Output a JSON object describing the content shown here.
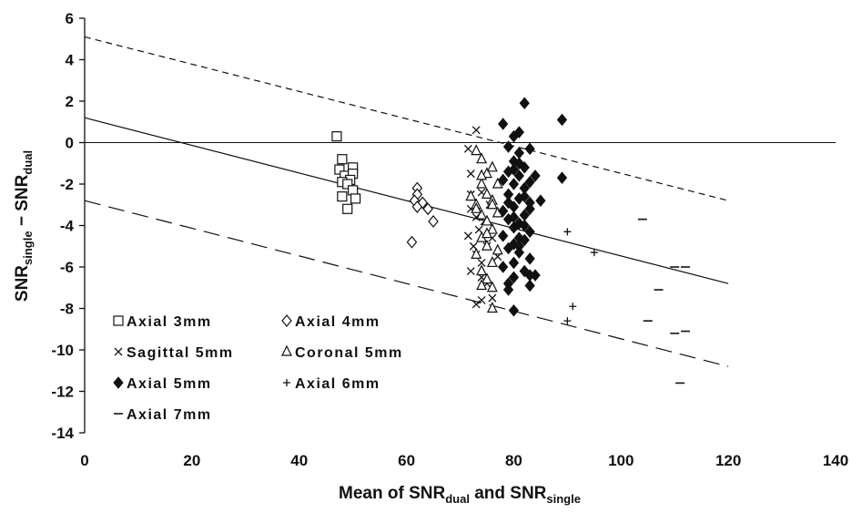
{
  "chart_data": {
    "type": "scatter",
    "xlabel": {
      "main": "Mean of SNR",
      "sub1": "dual",
      "mid": " and SNR",
      "sub2": "single"
    },
    "ylabel": {
      "main": "SNR",
      "sub1": "single",
      "mid": " − SNR",
      "sub2": "dual"
    },
    "xlim": [
      0,
      140
    ],
    "ylim": [
      -14,
      6
    ],
    "xticks": [
      0,
      20,
      40,
      60,
      80,
      100,
      120,
      140
    ],
    "yticks": [
      -14,
      -12,
      -10,
      -8,
      -6,
      -4,
      -2,
      0,
      2,
      4,
      6
    ],
    "grid": false,
    "legend_position": "bottom-left",
    "series": [
      {
        "name": "Axial 3mm",
        "marker": "open-square",
        "color": "#111111",
        "points": [
          [
            47,
            0.3
          ],
          [
            48,
            -0.8
          ],
          [
            47.5,
            -1.3
          ],
          [
            48.5,
            -1.6
          ],
          [
            50,
            -1.2
          ],
          [
            50,
            -1.5
          ],
          [
            49.5,
            -1.8
          ],
          [
            48,
            -1.9
          ],
          [
            49,
            -2.0
          ],
          [
            50,
            -2.3
          ],
          [
            48,
            -2.6
          ],
          [
            50.5,
            -2.7
          ],
          [
            49,
            -3.2
          ]
        ]
      },
      {
        "name": "Axial 4mm",
        "marker": "open-diamond",
        "color": "#111111",
        "points": [
          [
            62,
            -2.2
          ],
          [
            62,
            -2.5
          ],
          [
            61.5,
            -2.8
          ],
          [
            63,
            -2.9
          ],
          [
            62,
            -3.1
          ],
          [
            64,
            -3.2
          ],
          [
            65,
            -3.8
          ],
          [
            61,
            -4.8
          ]
        ]
      },
      {
        "name": "Sagittal 5mm",
        "marker": "x",
        "color": "#111111",
        "points": [
          [
            73,
            0.6
          ],
          [
            71.5,
            -0.3
          ],
          [
            72,
            -1.5
          ],
          [
            72,
            -2.5
          ],
          [
            72,
            -3.2
          ],
          [
            71.5,
            -4.5
          ],
          [
            73,
            -3.6
          ],
          [
            72.5,
            -5.0
          ],
          [
            73,
            -5.4
          ],
          [
            74,
            -5.8
          ],
          [
            72,
            -6.2
          ],
          [
            74,
            -6.5
          ],
          [
            75,
            -5.0
          ],
          [
            73.5,
            -4.2
          ],
          [
            74.5,
            -3.8
          ],
          [
            73,
            -7.8
          ],
          [
            74,
            -7.6
          ],
          [
            76,
            -7.5
          ],
          [
            75,
            -6.8
          ],
          [
            76,
            -4.6
          ],
          [
            77,
            -5.5
          ],
          [
            75.5,
            -3.0
          ],
          [
            74,
            -2.4
          ]
        ]
      },
      {
        "name": "Coronal 5mm",
        "marker": "open-triangle",
        "color": "#111111",
        "points": [
          [
            73,
            -0.4
          ],
          [
            74,
            -0.8
          ],
          [
            75,
            -1.5
          ],
          [
            76,
            -1.2
          ],
          [
            74,
            -2.0
          ],
          [
            75,
            -2.5
          ],
          [
            76,
            -2.8
          ],
          [
            73,
            -3.0
          ],
          [
            74,
            -3.5
          ],
          [
            75,
            -3.8
          ],
          [
            76,
            -4.2
          ],
          [
            74,
            -4.6
          ],
          [
            75,
            -5.0
          ],
          [
            73,
            -5.4
          ],
          [
            76,
            -5.8
          ],
          [
            74,
            -6.2
          ],
          [
            75,
            -6.6
          ],
          [
            76,
            -7.0
          ],
          [
            73,
            -3.2
          ],
          [
            77,
            -2.0
          ],
          [
            77,
            -3.4
          ],
          [
            72,
            -2.6
          ],
          [
            76,
            -8.0
          ],
          [
            74,
            -6.9
          ],
          [
            75,
            -4.4
          ],
          [
            76,
            -3.0
          ],
          [
            74,
            -1.6
          ],
          [
            77,
            -5.2
          ]
        ]
      },
      {
        "name": "Axial 5mm",
        "marker": "filled-diamond",
        "color": "#111111",
        "points": [
          [
            82,
            1.9
          ],
          [
            81,
            0.5
          ],
          [
            80,
            0.3
          ],
          [
            78,
            0.9
          ],
          [
            89,
            1.1
          ],
          [
            79,
            -0.2
          ],
          [
            81,
            -0.5
          ],
          [
            83,
            -0.3
          ],
          [
            80,
            -0.9
          ],
          [
            82,
            -1.2
          ],
          [
            79,
            -1.4
          ],
          [
            81,
            -1.6
          ],
          [
            78,
            -1.8
          ],
          [
            80,
            -2.0
          ],
          [
            82,
            -2.2
          ],
          [
            79,
            -2.5
          ],
          [
            81,
            -2.7
          ],
          [
            83,
            -2.9
          ],
          [
            80,
            -3.1
          ],
          [
            78,
            -3.3
          ],
          [
            82,
            -3.5
          ],
          [
            79,
            -3.7
          ],
          [
            81,
            -3.9
          ],
          [
            80,
            -4.1
          ],
          [
            83,
            -4.3
          ],
          [
            78,
            -4.5
          ],
          [
            82,
            -4.7
          ],
          [
            80,
            -4.9
          ],
          [
            79,
            -5.1
          ],
          [
            81,
            -5.3
          ],
          [
            83,
            -5.6
          ],
          [
            80,
            -5.8
          ],
          [
            78,
            -6.0
          ],
          [
            82,
            -6.2
          ],
          [
            80,
            -6.5
          ],
          [
            79,
            -6.8
          ],
          [
            79,
            -7.1
          ],
          [
            80,
            -8.1
          ],
          [
            83,
            -6.4
          ],
          [
            84,
            -6.4
          ],
          [
            83,
            -6.9
          ],
          [
            85,
            -2.8
          ],
          [
            84,
            -1.6
          ],
          [
            89,
            -1.7
          ],
          [
            81,
            -1.0
          ],
          [
            82,
            -2.6
          ],
          [
            80,
            -3.6
          ],
          [
            81,
            -4.6
          ],
          [
            83,
            -3.2
          ],
          [
            79,
            -2.9
          ],
          [
            82,
            -4.0
          ],
          [
            81,
            -5.0
          ],
          [
            80,
            -1.3
          ],
          [
            83,
            -1.9
          ]
        ]
      },
      {
        "name": "Axial 6mm",
        "marker": "plus",
        "color": "#111111",
        "points": [
          [
            90,
            -4.3
          ],
          [
            95,
            -5.3
          ],
          [
            91,
            -7.9
          ],
          [
            90,
            -8.6
          ]
        ]
      },
      {
        "name": "Axial 7mm",
        "marker": "dash",
        "color": "#111111",
        "points": [
          [
            104,
            -3.7
          ],
          [
            107,
            -7.1
          ],
          [
            110,
            -6.0
          ],
          [
            112,
            -6.0
          ],
          [
            105,
            -8.6
          ],
          [
            110,
            -9.2
          ],
          [
            112,
            -9.1
          ],
          [
            111,
            -11.6
          ]
        ]
      }
    ],
    "lines": [
      {
        "style": "solid",
        "from": [
          0,
          1.2
        ],
        "to": [
          120,
          -6.8
        ]
      },
      {
        "style": "short-dash",
        "from": [
          0,
          5.1
        ],
        "to": [
          120,
          -2.8
        ]
      },
      {
        "style": "long-dash",
        "from": [
          0,
          -2.8
        ],
        "to": [
          120,
          -10.8
        ]
      },
      {
        "style": "solid-thin",
        "from": [
          0,
          0
        ],
        "to": [
          140,
          0
        ]
      }
    ]
  }
}
